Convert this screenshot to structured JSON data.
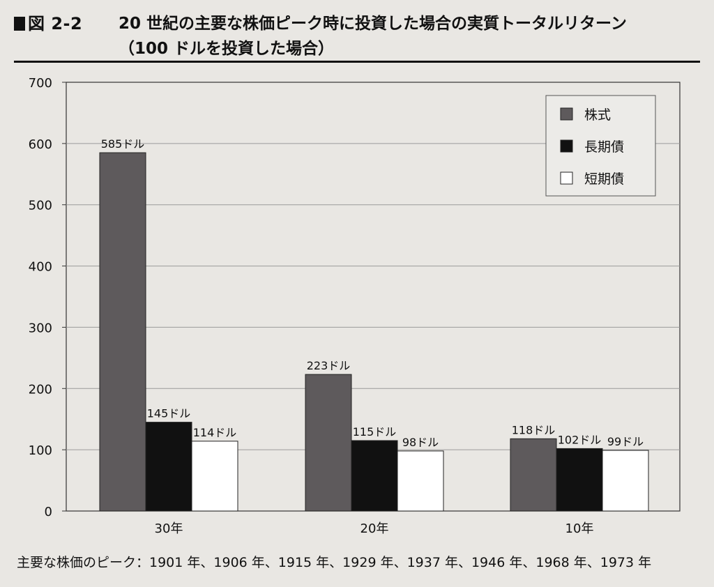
{
  "figure": {
    "label": "図 2-2",
    "title_line1": "20 世紀の主要な株価ピーク時に投資した場合の実質トータルリターン",
    "title_line2": "（100 ドルを投資した場合）"
  },
  "footnote": "主要な株価のピーク：1901 年、1906 年、1915 年、1929 年、1937 年、1946 年、1968 年、1973 年",
  "chart_data": {
    "type": "bar",
    "title": "20 世紀の主要な株価ピーク時に投資した場合の実質トータルリターン（100 ドルを投資した場合）",
    "xlabel": "",
    "ylabel": "",
    "ylim": [
      0,
      700
    ],
    "yticks": [
      0,
      100,
      200,
      300,
      400,
      500,
      600,
      700
    ],
    "grid": true,
    "legend_position": "top-right",
    "categories": [
      "30年",
      "20年",
      "10年"
    ],
    "series": [
      {
        "name": "株式",
        "color": "#5e5a5c",
        "values": [
          585,
          223,
          118
        ],
        "labels": [
          "585ドル",
          "223ドル",
          "118ドル"
        ]
      },
      {
        "name": "長期債",
        "color": "#111111",
        "values": [
          145,
          115,
          102
        ],
        "labels": [
          "145ドル",
          "115ドル",
          "102ドル"
        ]
      },
      {
        "name": "短期債",
        "color": "#ffffff",
        "values": [
          114,
          98,
          99
        ],
        "labels": [
          "114ドル",
          "98ドル",
          "99ドル"
        ]
      }
    ]
  }
}
